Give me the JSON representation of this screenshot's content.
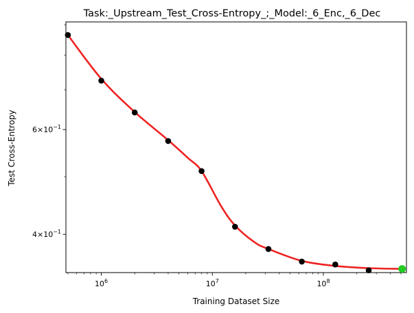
{
  "chart_data": {
    "type": "scatter",
    "title": "Task:_Upstream_Test_Cross-Entropy_;_Model:_6_Enc,_6_Dec",
    "xlabel": "Training Dataset Size",
    "ylabel": "Test Cross-Entropy",
    "xscale": "log",
    "yscale": "log",
    "xlim": [
      480000,
      560000000
    ],
    "ylim": [
      0.345,
      0.91
    ],
    "grid": false,
    "x_ticks": [
      {
        "value": 1000000,
        "base": "10",
        "exp": "6"
      },
      {
        "value": 10000000,
        "base": "10",
        "exp": "7"
      },
      {
        "value": 100000000,
        "base": "10",
        "exp": "8"
      }
    ],
    "y_ticks": [
      {
        "value": 0.6,
        "mantissa": "6",
        "base": "10",
        "exp": "−1"
      },
      {
        "value": 0.4,
        "mantissa": "4",
        "base": "10",
        "exp": "−1"
      }
    ],
    "y_minor_ticks": [
      0.5,
      0.7,
      0.8,
      0.9
    ],
    "series": [
      {
        "kind": "points",
        "color": "#000000",
        "x": [
          500000,
          1000000,
          2000000,
          4000000,
          8000000,
          16000000,
          32000000,
          64000000,
          128000000,
          256000000
        ],
        "y": [
          0.865,
          0.725,
          0.641,
          0.574,
          0.511,
          0.412,
          0.378,
          0.36,
          0.356,
          0.348
        ]
      },
      {
        "kind": "fit_line",
        "color": "#ee2222",
        "x": [
          500000,
          1000000,
          2000000,
          4000000,
          6000000,
          8000000,
          12000000,
          16000000,
          24000000,
          32000000,
          64000000,
          128000000,
          256000000,
          512000000
        ],
        "y": [
          0.865,
          0.73,
          0.642,
          0.576,
          0.538,
          0.511,
          0.446,
          0.414,
          0.388,
          0.378,
          0.361,
          0.354,
          0.351,
          0.35
        ]
      },
      {
        "kind": "highlight_point",
        "color": "#22cc22",
        "x": [
          512000000
        ],
        "y": [
          0.35
        ]
      }
    ]
  }
}
